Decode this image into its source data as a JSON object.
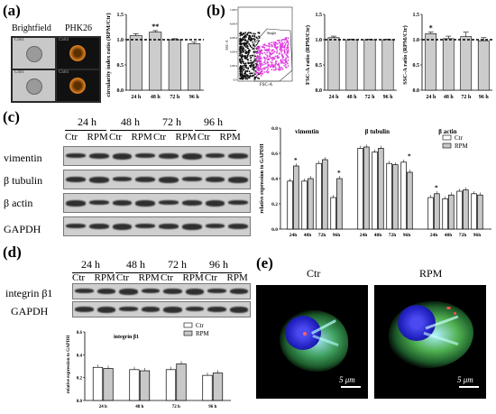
{
  "panels": {
    "a": "(a)",
    "b": "(b)",
    "c": "(c)",
    "d": "(d)",
    "e": "(e)"
  },
  "a": {
    "col_labels": [
      "Brightfield",
      "PHK26"
    ],
    "thumb_labels": [
      "Ch01",
      "Ch04",
      "Ch01",
      "Ch04"
    ]
  },
  "b": {
    "flow_xlabel": "FSC-A",
    "flow_ylabel": "SSC-A",
    "flow_ticks": [
      "1.0E5",
      "8.0E4",
      "6.0E4",
      "4.0E4",
      "2.0E4",
      "0.0"
    ],
    "flow_gate": "Single"
  },
  "c": {
    "time_labels": [
      "24 h",
      "48 h",
      "72 h",
      "96 h"
    ],
    "cond_labels": [
      "Ctr",
      "RPM",
      "Ctr",
      "RPM",
      "Ctr",
      "RPM",
      "Ctr",
      "RPM"
    ],
    "row_labels": [
      "vimentin",
      "β tubulin",
      "β actin",
      "GAPDH"
    ]
  },
  "d": {
    "time_labels": [
      "24 h",
      "48 h",
      "72 h",
      "96 h"
    ],
    "cond_labels": [
      "Ctr",
      "RPM",
      "Ctr",
      "RPM",
      "Ctr",
      "RPM",
      "Ctr",
      "RPM"
    ],
    "row_labels": [
      "integrin β1",
      "GAPDH"
    ]
  },
  "e": {
    "left_label": "Ctr",
    "right_label": "RPM",
    "scale_left": "5 μm",
    "scale_right": "5 μm"
  },
  "chart_data": [
    {
      "id": "a-bar",
      "type": "bar",
      "categories": [
        "24 h",
        "48 h",
        "72 h",
        "96 h"
      ],
      "values": [
        1.08,
        1.15,
        1.0,
        0.92
      ],
      "errors": [
        0.04,
        0.03,
        0.02,
        0.03
      ],
      "annotations": [
        "",
        "**",
        "",
        ""
      ],
      "ylabel": "circularity index ratio (RPM/Ctr)",
      "ylim": [
        0,
        1.5
      ],
      "yticks": [
        "0.0",
        "0.5",
        "1.0",
        "1.5"
      ],
      "reference_line": 1.0
    },
    {
      "id": "b-fsc",
      "type": "bar",
      "categories": [
        "24 h",
        "48 h",
        "72 h",
        "96 h"
      ],
      "values": [
        1.04,
        1.0,
        1.0,
        1.0
      ],
      "errors": [
        0.03,
        0.01,
        0.01,
        0.01
      ],
      "ylabel": "FSC-A ratio (RPM/Ctr)",
      "ylim": [
        0,
        1.5
      ],
      "yticks": [
        "0.0",
        "0.5",
        "1.0",
        "1.5"
      ],
      "reference_line": 1.0
    },
    {
      "id": "b-ssc",
      "type": "bar",
      "categories": [
        "24 h",
        "48 h",
        "72 h",
        "96 h"
      ],
      "values": [
        1.12,
        1.02,
        1.06,
        0.98
      ],
      "errors": [
        0.03,
        0.05,
        0.09,
        0.06
      ],
      "annotations": [
        "*",
        "",
        "",
        ""
      ],
      "ylabel": "SSC-A ratio (RPM/Ctr)",
      "ylim": [
        0,
        1.5
      ],
      "yticks": [
        "0.0",
        "0.5",
        "1.0",
        "1.5"
      ],
      "reference_line": 1.0
    },
    {
      "id": "c-bar",
      "type": "bar",
      "groups": [
        "vimentin",
        "β tubulin",
        "β actin"
      ],
      "categories": [
        "24h",
        "48h",
        "72h",
        "96h"
      ],
      "ylabel": "relative expression to GAPDH",
      "ylim": [
        0,
        0.8
      ],
      "yticks": [
        "0.0",
        "0.2",
        "0.4",
        "0.6",
        "0.8"
      ],
      "legend": [
        "Ctr",
        "RPM"
      ],
      "series": [
        {
          "name": "Ctr",
          "values": [
            [
              0.38,
              0.38,
              0.52,
              0.25
            ],
            [
              0.64,
              0.61,
              0.52,
              0.53
            ],
            [
              0.25,
              0.24,
              0.3,
              0.28
            ]
          ]
        },
        {
          "name": "RPM",
          "values": [
            [
              0.5,
              0.4,
              0.55,
              0.4
            ],
            [
              0.65,
              0.64,
              0.51,
              0.45
            ],
            [
              0.28,
              0.27,
              0.31,
              0.27
            ]
          ]
        }
      ],
      "annotations": [
        [
          "*",
          "",
          "",
          "*"
        ],
        [
          "",
          "",
          "",
          "*"
        ],
        [
          "*",
          "",
          "",
          ""
        ]
      ]
    },
    {
      "id": "d-bar",
      "type": "bar",
      "title": "integrin β1",
      "categories": [
        "24 h",
        "48 h",
        "72 h",
        "96 h"
      ],
      "ylabel": "relative expression to GAPDH",
      "ylim": [
        0,
        0.6
      ],
      "yticks": [
        "0.0",
        "0.2",
        "0.4",
        "0.6"
      ],
      "legend": [
        "Ctr",
        "RPM"
      ],
      "series": [
        {
          "name": "Ctr",
          "values": [
            0.29,
            0.27,
            0.27,
            0.22
          ]
        },
        {
          "name": "RPM",
          "values": [
            0.28,
            0.26,
            0.32,
            0.24
          ]
        }
      ]
    }
  ]
}
